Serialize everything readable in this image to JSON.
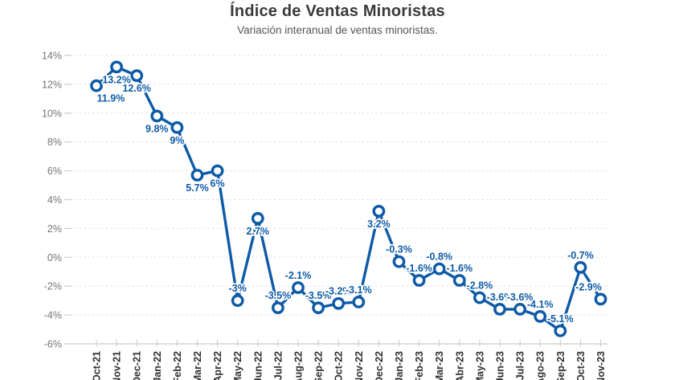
{
  "header": {
    "title": "Índice de Ventas Minoristas",
    "subtitle": "Variación interanual de ventas minoristas."
  },
  "chart_data": {
    "type": "line",
    "title": "Índice de Ventas Minoristas",
    "subtitle": "Variación interanual de ventas minoristas.",
    "categories": [
      "Oct-21",
      "Nov-21",
      "Dec-21",
      "Jan-22",
      "Feb-22",
      "Mar-22",
      "Apr-22",
      "May-22",
      "Jun-22",
      "Jul-22",
      "Aug-22",
      "Sep-22",
      "Oct-22",
      "Nov-22",
      "Dec-22",
      "Jan-23",
      "Feb-23",
      "Mar-23",
      "Abr-23",
      "May-23",
      "Jun-23",
      "Jul-23",
      "Ago-23",
      "Sep-23",
      "Oct-23",
      "Nov-23"
    ],
    "values": [
      11.9,
      13.2,
      12.6,
      9.8,
      9,
      5.7,
      6,
      -3,
      2.7,
      -3.5,
      -2.1,
      -3.5,
      -3.2,
      -3.1,
      3.2,
      -0.3,
      -1.6,
      -0.8,
      -1.6,
      -2.8,
      -3.6,
      -3.6,
      -4.1,
      -5.1,
      -0.7,
      -2.9
    ],
    "point_labels": [
      "11.9%",
      "13.2%",
      "12.6%",
      "9.8%",
      "9%",
      "5.7%",
      "6%",
      "-3%",
      "2.7%",
      "-3.5%",
      "-2.1%",
      "-3.5%",
      "-3.2%",
      "-3.1%",
      "3.2%",
      "-0.3%",
      "-1.6%",
      "-0.8%",
      "-1.6%",
      "-2.8%",
      "-3.6%",
      "-3.6%",
      "-4.1%",
      "-5.1%",
      "-0.7%",
      "-2.9%"
    ],
    "xlabel": "",
    "ylabel": "",
    "unit": "%",
    "ylim": [
      -6,
      14
    ],
    "ytick_step": 2,
    "ytick_labels": [
      "14%",
      "12%",
      "10%",
      "8%",
      "6%",
      "4%",
      "2%",
      "0%",
      "-2%",
      "-4%",
      "-6%"
    ],
    "grid": "horizontal-dashed",
    "legend": "none",
    "marker": "open-circle",
    "label_rule": "below-if-positive-above-if-negative",
    "label_dx_overrides": {
      "0": 18,
      "25": -15
    }
  },
  "colors": {
    "line": "#0d5aa7",
    "marker_fill": "#ffffff",
    "point_label": "#0d5aa7",
    "grid": "#d9d9d9",
    "axis": "#c9c9c9",
    "tick": "#cccccc",
    "title": "#3a3a3a",
    "subtitle": "#545454",
    "x_label": "#2f2f2f",
    "y_label": "#757575",
    "background": "#ffffff"
  }
}
